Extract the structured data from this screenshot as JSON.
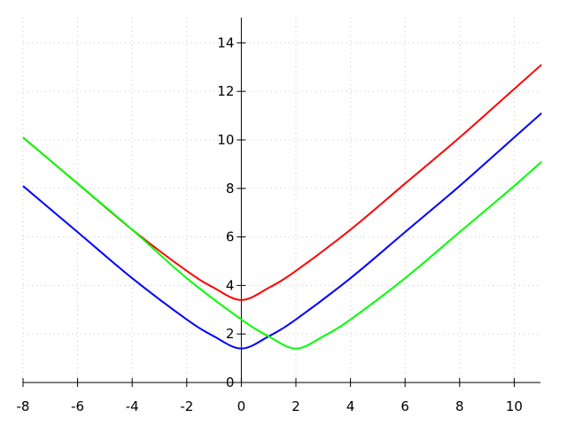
{
  "chart_data": {
    "type": "line",
    "title": "",
    "xlabel": "",
    "ylabel": "",
    "xlim": [
      -8,
      11
    ],
    "ylim": [
      0,
      15
    ],
    "grid": true,
    "x_ticks": [
      "-8",
      "-6",
      "-4",
      "-2",
      "0",
      "2",
      "4",
      "6",
      "8",
      "10"
    ],
    "y_ticks": [
      "0",
      "2",
      "4",
      "6",
      "8",
      "10",
      "12",
      "14"
    ],
    "series": [
      {
        "color": "#ff0000",
        "x": [
          -8,
          -6,
          -4,
          -2,
          -1,
          0,
          1,
          2,
          4,
          6,
          8,
          10,
          11
        ],
        "y": [
          10.1,
          8.2,
          6.3,
          4.6,
          3.9,
          3.4,
          3.9,
          4.6,
          6.3,
          8.2,
          10.1,
          12.1,
          13.1
        ]
      },
      {
        "color": "#0000ff",
        "x": [
          -8,
          -6,
          -4,
          -2,
          -1,
          0,
          1,
          2,
          4,
          6,
          8,
          10,
          11
        ],
        "y": [
          8.1,
          6.2,
          4.3,
          2.6,
          1.9,
          1.4,
          1.9,
          2.6,
          4.3,
          6.2,
          8.1,
          10.1,
          11.1
        ]
      },
      {
        "color": "#00ff00",
        "x": [
          -8,
          -6,
          -4,
          -2,
          0,
          1,
          2,
          3,
          4,
          6,
          8,
          10,
          11
        ],
        "y": [
          10.1,
          8.2,
          6.3,
          4.3,
          2.6,
          1.9,
          1.4,
          1.9,
          2.6,
          4.3,
          6.2,
          8.1,
          9.1
        ]
      }
    ]
  }
}
